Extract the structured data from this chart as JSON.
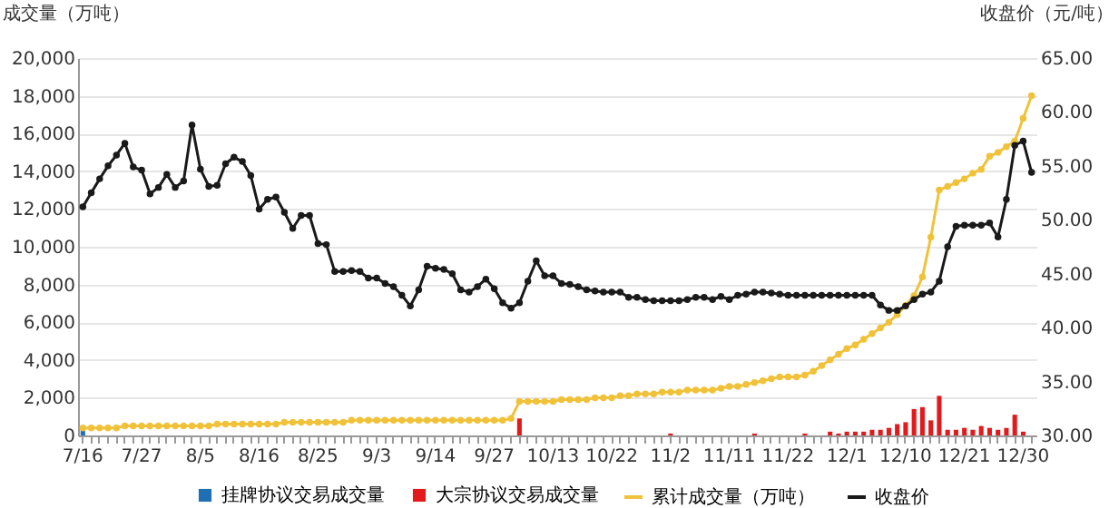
{
  "chart_data": {
    "type": "bar",
    "ylabel": "成交量（万吨）",
    "y2label": "收盘价（元/吨）",
    "categories": [
      "7/16",
      null,
      null,
      null,
      null,
      null,
      null,
      "7/27",
      null,
      null,
      null,
      null,
      null,
      null,
      "8/5",
      null,
      null,
      null,
      null,
      null,
      null,
      "8/16",
      null,
      null,
      null,
      null,
      null,
      null,
      "8/25",
      null,
      null,
      null,
      null,
      null,
      null,
      "9/3",
      null,
      null,
      null,
      null,
      null,
      null,
      "9/14",
      null,
      null,
      null,
      null,
      null,
      null,
      "9/27",
      null,
      null,
      null,
      null,
      null,
      null,
      "10/13",
      null,
      null,
      null,
      null,
      null,
      null,
      "10/22",
      null,
      null,
      null,
      null,
      null,
      null,
      "11/2",
      null,
      null,
      null,
      null,
      null,
      null,
      "11/11",
      null,
      null,
      null,
      null,
      null,
      null,
      "11/22",
      null,
      null,
      null,
      null,
      null,
      null,
      "12/1",
      null,
      null,
      null,
      null,
      null,
      null,
      "12/10",
      null,
      null,
      null,
      null,
      null,
      null,
      "12/21",
      null,
      null,
      null,
      null,
      null,
      null,
      "12/30",
      null
    ],
    "ylim": [
      0,
      20000
    ],
    "yticks": [
      {
        "value": 0,
        "label": "0"
      },
      {
        "value": 2000,
        "label": "2,000"
      },
      {
        "value": 4000,
        "label": "4,000"
      },
      {
        "value": 6000,
        "label": "6,000"
      },
      {
        "value": 8000,
        "label": "8,000"
      },
      {
        "value": 10000,
        "label": "10,000"
      },
      {
        "value": 12000,
        "label": "12,000"
      },
      {
        "value": 14000,
        "label": "14,000"
      },
      {
        "value": 16000,
        "label": "16,000"
      },
      {
        "value": 18000,
        "label": "18,000"
      },
      {
        "value": 20000,
        "label": "20,000"
      }
    ],
    "y2lim": [
      30,
      65
    ],
    "y2ticks": [
      {
        "value": 30,
        "label": "30.00"
      },
      {
        "value": 35,
        "label": "35.00"
      },
      {
        "value": 40,
        "label": "40.00"
      },
      {
        "value": 45,
        "label": "45.00"
      },
      {
        "value": 50,
        "label": "50.00"
      },
      {
        "value": 55,
        "label": "55.00"
      },
      {
        "value": 60,
        "label": "60.00"
      },
      {
        "value": 65,
        "label": "65.00"
      }
    ],
    "grid": "y",
    "legend": "bottom",
    "marker": "circle",
    "line_style": "solid",
    "series": [
      {
        "name": "挂牌协议交易成交量",
        "color": "#1f6fb4",
        "values": [
          400,
          null,
          null,
          null,
          null,
          null,
          null,
          null,
          null,
          null,
          null,
          null,
          null,
          null,
          null,
          null,
          null,
          null,
          null,
          null,
          null,
          null,
          null,
          null,
          null,
          null,
          null,
          null,
          null,
          null,
          null,
          null,
          null,
          null,
          null,
          null,
          null,
          null,
          null,
          null,
          null,
          null,
          null,
          null,
          null,
          null,
          null,
          null,
          null,
          null,
          null,
          null,
          null,
          null,
          null,
          null,
          null,
          null,
          null,
          null,
          null,
          null,
          null,
          null,
          null,
          null,
          null,
          null,
          null,
          null,
          null,
          null,
          null,
          null,
          null,
          null,
          null,
          null,
          null,
          null,
          null,
          null,
          null,
          null,
          null,
          null,
          null,
          null,
          null,
          null,
          null,
          null,
          null,
          null,
          null,
          null,
          null,
          null,
          null,
          null,
          null,
          null,
          null,
          null,
          null,
          null,
          null,
          null,
          null,
          null,
          null,
          null,
          null,
          null
        ]
      },
      {
        "name": "大宗协议交易成交量",
        "color": "#e31a1c",
        "values": [
          null,
          null,
          null,
          null,
          null,
          null,
          null,
          null,
          null,
          null,
          null,
          null,
          null,
          null,
          null,
          null,
          null,
          null,
          null,
          null,
          null,
          null,
          null,
          null,
          null,
          null,
          null,
          null,
          null,
          null,
          null,
          null,
          null,
          null,
          null,
          null,
          null,
          null,
          null,
          null,
          null,
          null,
          null,
          null,
          null,
          null,
          null,
          null,
          null,
          null,
          null,
          null,
          900,
          null,
          null,
          null,
          null,
          null,
          null,
          null,
          null,
          null,
          null,
          null,
          null,
          null,
          null,
          null,
          null,
          null,
          100,
          null,
          null,
          null,
          null,
          null,
          null,
          null,
          null,
          null,
          100,
          null,
          null,
          null,
          null,
          null,
          100,
          null,
          null,
          200,
          100,
          200,
          200,
          200,
          300,
          300,
          400,
          600,
          700,
          1400,
          1500,
          800,
          2100,
          300,
          300,
          400,
          300,
          500,
          400,
          300,
          400,
          1100,
          200,
          null
        ]
      },
      {
        "name": "累计成交量（万吨）",
        "type": "line",
        "color": "#f0c23a",
        "values": [
          400,
          400,
          400,
          400,
          400,
          500,
          500,
          500,
          500,
          500,
          500,
          500,
          500,
          500,
          500,
          500,
          600,
          600,
          600,
          600,
          600,
          600,
          600,
          600,
          700,
          700,
          700,
          700,
          700,
          700,
          700,
          700,
          800,
          800,
          800,
          800,
          800,
          800,
          800,
          800,
          800,
          800,
          800,
          800,
          800,
          800,
          800,
          800,
          800,
          800,
          800,
          900,
          1800,
          1800,
          1800,
          1800,
          1800,
          1900,
          1900,
          1900,
          1900,
          2000,
          2000,
          2000,
          2100,
          2100,
          2200,
          2200,
          2200,
          2300,
          2300,
          2300,
          2400,
          2400,
          2400,
          2400,
          2500,
          2600,
          2600,
          2700,
          2800,
          2900,
          3000,
          3100,
          3100,
          3100,
          3200,
          3400,
          3700,
          4000,
          4300,
          4600,
          4800,
          5100,
          5400,
          5700,
          6000,
          6400,
          6900,
          7400,
          8400,
          10500,
          13000,
          13200,
          13400,
          13600,
          13900,
          14100,
          14800,
          15000,
          15300,
          15600,
          16800,
          18000
        ]
      },
      {
        "name": "收盘价",
        "type": "line",
        "axis": "y2",
        "color": "#1a1a1a",
        "values": [
          51.2,
          52.5,
          53.8,
          55.0,
          56.0,
          57.1,
          54.9,
          54.6,
          52.4,
          53.0,
          54.2,
          53.0,
          53.6,
          58.8,
          54.7,
          53.1,
          53.2,
          55.2,
          55.8,
          55.4,
          54.1,
          51.0,
          51.9,
          52.1,
          50.7,
          49.2,
          50.4,
          50.4,
          47.8,
          47.7,
          45.2,
          45.2,
          45.3,
          45.2,
          44.6,
          44.6,
          44.1,
          43.8,
          43.0,
          42.0,
          43.5,
          45.7,
          45.5,
          45.4,
          45.0,
          43.5,
          43.3,
          43.8,
          44.5,
          43.6,
          42.3,
          41.8,
          42.3,
          44.3,
          46.2,
          44.8,
          44.8,
          44.1,
          44.0,
          43.8,
          43.5,
          43.4,
          43.3,
          43.3,
          43.3,
          42.8,
          42.8,
          42.6,
          42.5,
          42.5,
          42.5,
          42.5,
          42.6,
          42.8,
          42.8,
          42.6,
          42.9,
          42.6,
          43.0,
          43.1,
          43.3,
          43.3,
          43.2,
          43.1,
          43.0,
          43.0,
          43.0,
          43.0,
          43.0,
          43.0,
          43.0,
          43.0,
          43.0,
          43.0,
          43.0,
          42.1,
          41.6,
          41.6,
          42.0,
          42.6,
          43.1,
          43.3,
          44.3,
          47.5,
          49.4,
          49.5,
          49.5,
          49.5,
          49.7,
          48.4,
          51.9,
          56.9,
          57.3,
          54.4
        ]
      }
    ]
  }
}
